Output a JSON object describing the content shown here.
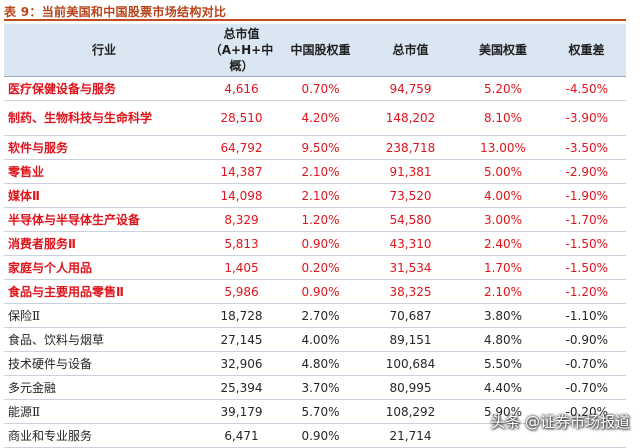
{
  "title": "表 9：当前美国和中国股票市场结构对比",
  "headers": {
    "industry": "行业",
    "total_cap_cn": "总市值（A+H+中概）",
    "cn_weight": "中国股权重",
    "total_cap_us": "总市值",
    "us_weight": "美国权重",
    "weight_diff": "权重差"
  },
  "rows": [
    {
      "name": "医疗保健设备与服务",
      "cn_cap": "4,616",
      "cn_w": "0.70%",
      "us_cap": "94,759",
      "us_w": "5.20%",
      "diff": "-4.50%",
      "highlight": true
    },
    {
      "name": "制药、生物科技与生命科学",
      "cn_cap": "28,510",
      "cn_w": "4.20%",
      "us_cap": "148,202",
      "us_w": "8.10%",
      "diff": "-3.90%",
      "highlight": true
    },
    {
      "name": "软件与服务",
      "cn_cap": "64,792",
      "cn_w": "9.50%",
      "us_cap": "238,718",
      "us_w": "13.00%",
      "diff": "-3.50%",
      "highlight": true
    },
    {
      "name": "零售业",
      "cn_cap": "14,387",
      "cn_w": "2.10%",
      "us_cap": "91,381",
      "us_w": "5.00%",
      "diff": "-2.90%",
      "highlight": true
    },
    {
      "name": "媒体Ⅱ",
      "cn_cap": "14,098",
      "cn_w": "2.10%",
      "us_cap": "73,520",
      "us_w": "4.00%",
      "diff": "-1.90%",
      "highlight": true
    },
    {
      "name": "半导体与半导体生产设备",
      "cn_cap": "8,329",
      "cn_w": "1.20%",
      "us_cap": "54,580",
      "us_w": "3.00%",
      "diff": "-1.70%",
      "highlight": true
    },
    {
      "name": "消费者服务Ⅱ",
      "cn_cap": "5,813",
      "cn_w": "0.90%",
      "us_cap": "43,310",
      "us_w": "2.40%",
      "diff": "-1.50%",
      "highlight": true
    },
    {
      "name": "家庭与个人用品",
      "cn_cap": "1,405",
      "cn_w": "0.20%",
      "us_cap": "31,534",
      "us_w": "1.70%",
      "diff": "-1.50%",
      "highlight": true
    },
    {
      "name": "食品与主要用品零售Ⅱ",
      "cn_cap": "5,986",
      "cn_w": "0.90%",
      "us_cap": "38,325",
      "us_w": "2.10%",
      "diff": "-1.20%",
      "highlight": true
    },
    {
      "name": "保险Ⅱ",
      "cn_cap": "18,728",
      "cn_w": "2.70%",
      "us_cap": "70,687",
      "us_w": "3.80%",
      "diff": "-1.10%",
      "highlight": false
    },
    {
      "name": "食品、饮料与烟草",
      "cn_cap": "27,145",
      "cn_w": "4.00%",
      "us_cap": "89,151",
      "us_w": "4.80%",
      "diff": "-0.90%",
      "highlight": false
    },
    {
      "name": "技术硬件与设备",
      "cn_cap": "32,906",
      "cn_w": "4.80%",
      "us_cap": "100,684",
      "us_w": "5.50%",
      "diff": "-0.70%",
      "highlight": false
    },
    {
      "name": "多元金融",
      "cn_cap": "25,394",
      "cn_w": "3.70%",
      "us_cap": "80,995",
      "us_w": "4.40%",
      "diff": "-0.70%",
      "highlight": false
    },
    {
      "name": "能源Ⅱ",
      "cn_cap": "39,179",
      "cn_w": "5.70%",
      "us_cap": "108,292",
      "us_w": "5.90%",
      "diff": "-0.20%",
      "highlight": false
    },
    {
      "name": "商业和专业服务",
      "cn_cap": "6,471",
      "cn_w": "0.90%",
      "us_cap": "21,714",
      "us_w": "",
      "diff": "",
      "highlight": false
    }
  ],
  "watermark": "头条 @证券市场报道",
  "colors": {
    "title": "#b8451a",
    "header_bg": "#dbe6f3",
    "highlight_text": "#e0141d",
    "normal_text": "#262626"
  }
}
